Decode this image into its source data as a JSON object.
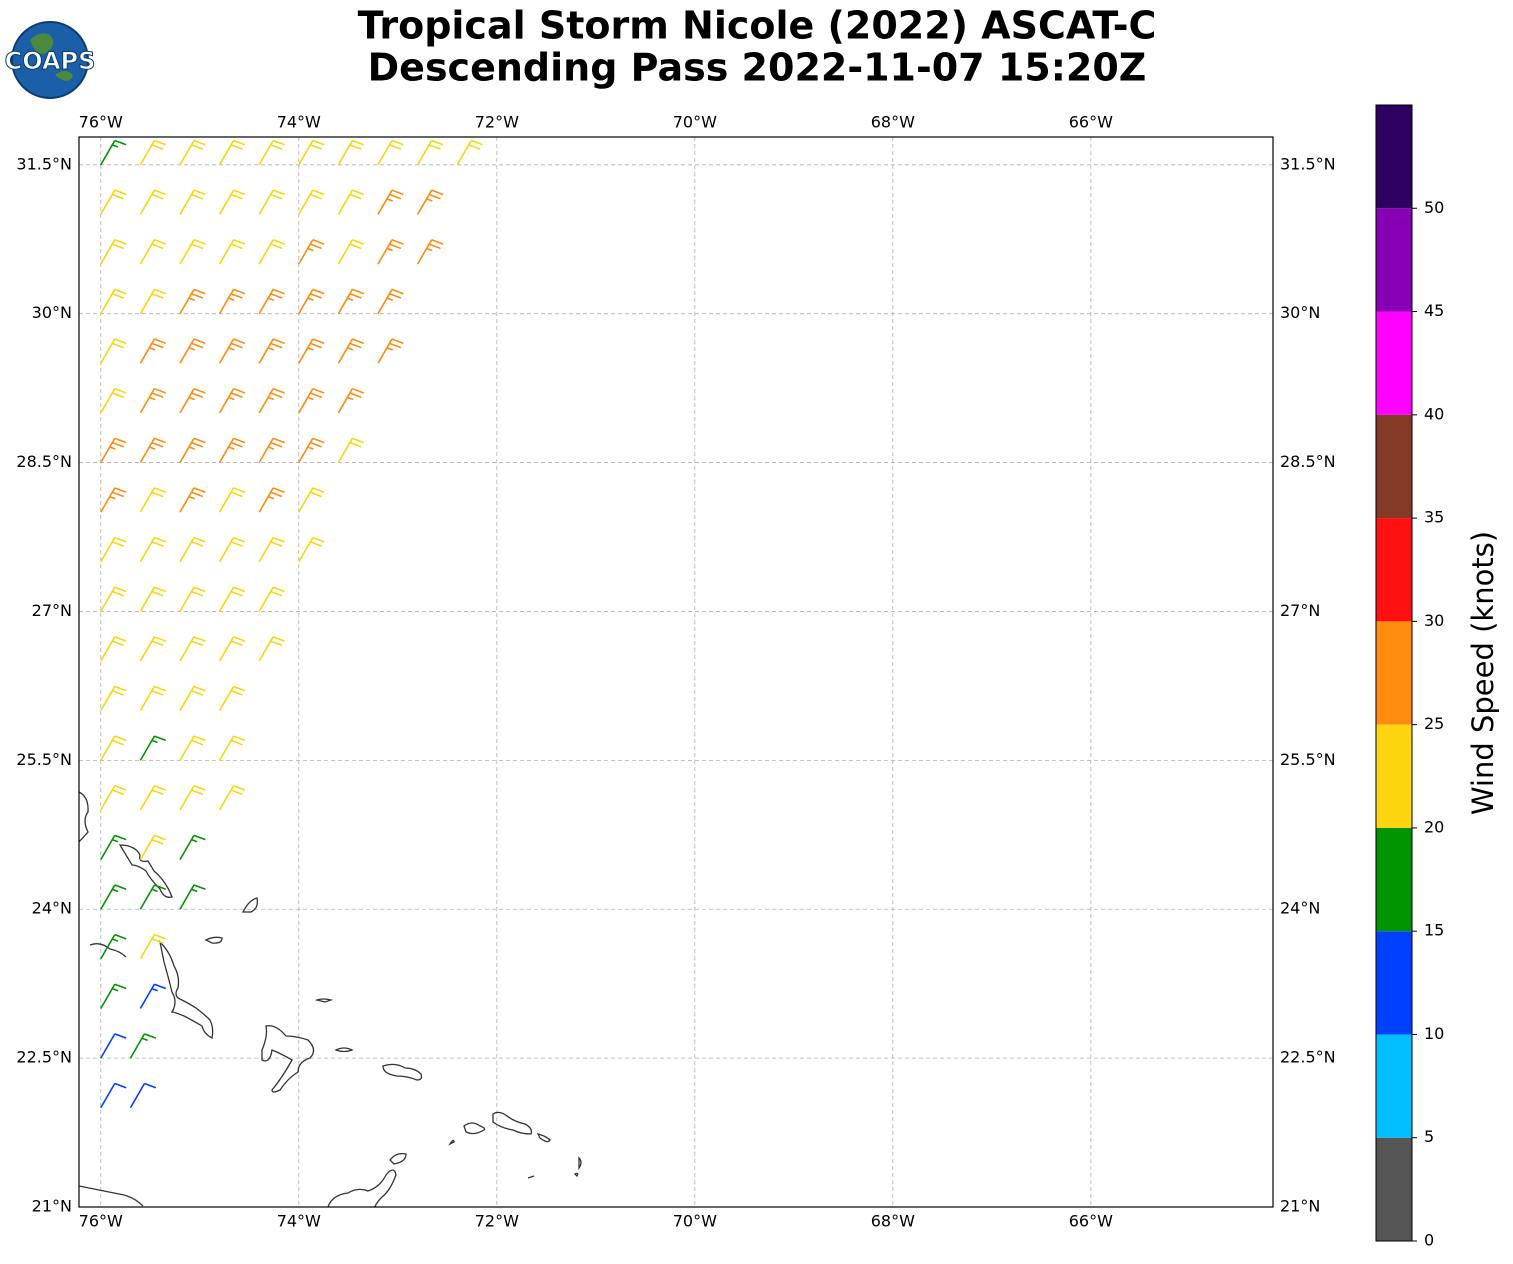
{
  "map_data": {
    "type": "wind-barbs",
    "logo_text": "COAPS",
    "title_lines": [
      "Tropical Storm Nicole (2022) ASCAT-C",
      "Descending Pass 2022-11-07 15:20Z"
    ],
    "xlim": [
      -76.22,
      -64.16
    ],
    "ylim": [
      21,
      31.78
    ],
    "xticks": [
      {
        "value": -76,
        "label": "76°W"
      },
      {
        "value": -74,
        "label": "74°W"
      },
      {
        "value": -72,
        "label": "72°W"
      },
      {
        "value": -70,
        "label": "70°W"
      },
      {
        "value": -68,
        "label": "68°W"
      },
      {
        "value": -66,
        "label": "66°W"
      }
    ],
    "yticks": [
      {
        "value": 21,
        "label": "21°N"
      },
      {
        "value": 22.5,
        "label": "22.5°N"
      },
      {
        "value": 24,
        "label": "24°N"
      },
      {
        "value": 25.5,
        "label": "25.5°N"
      },
      {
        "value": 27,
        "label": "27°N"
      },
      {
        "value": 28.5,
        "label": "28.5°N"
      },
      {
        "value": 30,
        "label": "30°N"
      },
      {
        "value": 31.5,
        "label": "31.5°N"
      }
    ],
    "grid": true,
    "wind_from_deg": 30,
    "rows": [
      {
        "lat": 22.0,
        "lon": [
          -76.0,
          -75.7
        ],
        "speed": [
          12,
          12
        ]
      },
      {
        "lat": 22.5,
        "lon": [
          -76.0,
          -75.7
        ],
        "speed": [
          12,
          17
        ]
      },
      {
        "lat": 23.0,
        "lon": [
          -76.0,
          -75.6
        ],
        "speed": [
          17,
          13
        ]
      },
      {
        "lat": 23.5,
        "lon": [
          -76.0,
          -75.6
        ],
        "speed": [
          17,
          21
        ]
      },
      {
        "lat": 24.0,
        "lon": [
          -76.0,
          -75.6,
          -75.2
        ],
        "speed": [
          17,
          17,
          17
        ]
      },
      {
        "lat": 24.5,
        "lon": [
          -76.0,
          -75.6,
          -75.2
        ],
        "speed": [
          17,
          21,
          17
        ]
      },
      {
        "lat": 25.0,
        "lon": [
          -76.0,
          -75.6,
          -75.2,
          -74.8
        ],
        "speed": [
          21,
          21,
          21,
          21
        ]
      },
      {
        "lat": 25.5,
        "lon": [
          -76.0,
          -75.6,
          -75.2,
          -74.8
        ],
        "speed": [
          21,
          16,
          21,
          21
        ]
      },
      {
        "lat": 26.0,
        "lon": [
          -76.0,
          -75.6,
          -75.2,
          -74.8
        ],
        "speed": [
          21,
          21,
          21,
          21
        ]
      },
      {
        "lat": 26.5,
        "lon": [
          -76.0,
          -75.6,
          -75.2,
          -74.8,
          -74.4
        ],
        "speed": [
          21,
          21,
          21,
          21,
          21
        ]
      },
      {
        "lat": 27.0,
        "lon": [
          -76.0,
          -75.6,
          -75.2,
          -74.8,
          -74.4
        ],
        "speed": [
          21,
          21,
          21,
          21,
          21
        ]
      },
      {
        "lat": 27.5,
        "lon": [
          -76.0,
          -75.6,
          -75.2,
          -74.8,
          -74.4,
          -74.0
        ],
        "speed": [
          21,
          21,
          22,
          21,
          21,
          21
        ]
      },
      {
        "lat": 28.0,
        "lon": [
          -76.0,
          -75.6,
          -75.2,
          -74.8,
          -74.4,
          -74.0
        ],
        "speed": [
          27,
          21,
          27,
          22,
          27,
          21
        ]
      },
      {
        "lat": 28.5,
        "lon": [
          -76.0,
          -75.6,
          -75.2,
          -74.8,
          -74.4,
          -74.0,
          -73.6
        ],
        "speed": [
          27,
          27,
          27,
          27,
          27,
          27,
          22
        ]
      },
      {
        "lat": 29.0,
        "lon": [
          -76.0,
          -75.6,
          -75.2,
          -74.8,
          -74.4,
          -74.0,
          -73.6
        ],
        "speed": [
          22,
          27,
          27,
          27,
          27,
          27,
          27
        ]
      },
      {
        "lat": 29.5,
        "lon": [
          -76.0,
          -75.6,
          -75.2,
          -74.8,
          -74.4,
          -74.0,
          -73.6,
          -73.2
        ],
        "speed": [
          22,
          27,
          27,
          27,
          27,
          27,
          27,
          27
        ]
      },
      {
        "lat": 30.0,
        "lon": [
          -76.0,
          -75.6,
          -75.2,
          -74.8,
          -74.4,
          -74.0,
          -73.6,
          -73.2
        ],
        "speed": [
          22,
          22,
          27,
          27,
          27,
          27,
          27,
          27
        ]
      },
      {
        "lat": 30.5,
        "lon": [
          -76.0,
          -75.6,
          -75.2,
          -74.8,
          -74.4,
          -74.0,
          -73.6,
          -73.2,
          -72.8
        ],
        "speed": [
          22,
          22,
          22,
          22,
          22,
          27,
          22,
          27,
          27
        ]
      },
      {
        "lat": 31.0,
        "lon": [
          -76.0,
          -75.6,
          -75.2,
          -74.8,
          -74.4,
          -74.0,
          -73.6,
          -73.2,
          -72.8
        ],
        "speed": [
          22,
          22,
          22,
          22,
          22,
          22,
          22,
          27,
          27
        ]
      },
      {
        "lat": 31.5,
        "lon": [
          -76.0,
          -75.6,
          -75.2,
          -74.8,
          -74.4,
          -74.0,
          -73.6,
          -73.2,
          -72.8,
          -72.4
        ],
        "speed": [
          17,
          22,
          22,
          22,
          22,
          22,
          22,
          22,
          22,
          22
        ]
      }
    ],
    "colorbar": {
      "label": "Wind Speed (knots)",
      "lim": [
        0,
        55
      ],
      "ticks": [
        0,
        5,
        10,
        15,
        20,
        25,
        30,
        35,
        40,
        45,
        50
      ],
      "colors": [
        "#555555",
        "#00bfff",
        "#0040ff",
        "#009400",
        "#fdd50f",
        "#ff8c0f",
        "#ff1010",
        "#853a28",
        "#ff00ff",
        "#8800b4",
        "#2e0060"
      ]
    }
  }
}
